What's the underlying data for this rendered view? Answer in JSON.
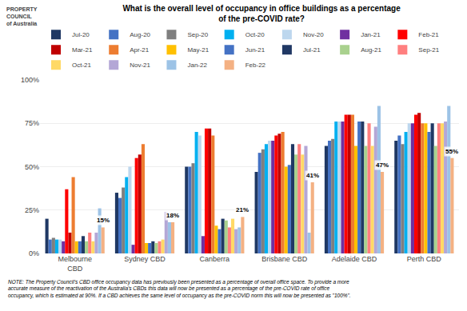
{
  "chart_data": {
    "type": "bar",
    "title": "What is the overall level of occupancy in office buildings as a percentage\nof the pre-COVID rate?",
    "categories": [
      "Melbourne\nCBD",
      "Sydney CBD",
      "Canberra",
      "Brisbane CBD",
      "Adelaide CBD",
      "Perth CBD"
    ],
    "series": [
      {
        "name": "Jul-20",
        "color": "#1F3864",
        "values": [
          20,
          35,
          50,
          47,
          62,
          65
        ]
      },
      {
        "name": "Aug-20",
        "color": "#4472C4",
        "values": [
          8,
          32,
          50,
          58,
          65,
          68
        ]
      },
      {
        "name": "Sep-20",
        "color": "#7F7F7F",
        "values": [
          9,
          38,
          52,
          60,
          66,
          63
        ]
      },
      {
        "name": "Oct-20",
        "color": "#00B0F0",
        "values": [
          8,
          44,
          70,
          63,
          76,
          70
        ]
      },
      {
        "name": "Nov-20",
        "color": "#BDD7EE",
        "values": [
          8,
          50,
          68,
          65,
          76,
          75
        ]
      },
      {
        "name": "Jan-21",
        "color": "#7030A0",
        "values": [
          7,
          5,
          10,
          65,
          76,
          75
        ]
      },
      {
        "name": "Feb-21",
        "color": "#FF0000",
        "values": [
          37,
          55,
          72,
          68,
          80,
          80
        ]
      },
      {
        "name": "Mar-21",
        "color": "#C00000",
        "values": [
          12,
          57,
          72,
          69,
          80,
          81
        ]
      },
      {
        "name": "Apr-21",
        "color": "#ED7D31",
        "values": [
          44,
          63,
          68,
          70,
          80,
          75
        ]
      },
      {
        "name": "May-21",
        "color": "#FFC000",
        "values": [
          7,
          6,
          16,
          50,
          62,
          75
        ]
      },
      {
        "name": "Jun-21",
        "color": "#4472C4",
        "values": [
          7,
          6,
          14,
          51,
          76,
          70
        ]
      },
      {
        "name": "Jul-21",
        "color": "#203864",
        "values": [
          10,
          7,
          20,
          63,
          76,
          75
        ]
      },
      {
        "name": "Aug-21",
        "color": "#A9D18E",
        "values": [
          7,
          6,
          19,
          57,
          62,
          62
        ]
      },
      {
        "name": "Sep-21",
        "color": "#FF7F7F",
        "values": [
          12,
          7,
          15,
          63,
          75,
          75
        ]
      },
      {
        "name": "Oct-21",
        "color": "#FFD966",
        "values": [
          7,
          8,
          20,
          57,
          62,
          75
        ]
      },
      {
        "name": "Nov-21",
        "color": "#B4A7D6",
        "values": [
          12,
          24,
          14,
          62,
          73,
          76
        ]
      },
      {
        "name": "Jan-22",
        "color": "#9DC3E6",
        "values": [
          26,
          18,
          15,
          12,
          85,
          85
        ]
      },
      {
        "name": "Feb-22",
        "color": "#F4B183",
        "values": [
          15,
          18,
          21,
          41,
          47,
          55
        ]
      }
    ],
    "annotations": [
      {
        "text": "15%",
        "category": "Melbourne\nCBD",
        "series": "Feb-22"
      },
      {
        "text": "18%",
        "category": "Sydney CBD",
        "series": "Feb-22"
      },
      {
        "text": "21%",
        "category": "Canberra",
        "series": "Feb-22"
      },
      {
        "text": "41%",
        "category": "Brisbane CBD",
        "series": "Feb-22"
      },
      {
        "text": "47%",
        "category": "Adelaide CBD",
        "series": "Feb-22"
      },
      {
        "text": "55%",
        "category": "Perth CBD",
        "series": "Feb-22"
      }
    ],
    "ylim": [
      0,
      100
    ],
    "yticks": [
      {
        "value": 0,
        "label": "0%"
      },
      {
        "value": 25,
        "label": "25%"
      },
      {
        "value": 50,
        "label": "50%"
      },
      {
        "value": 75,
        "label": "75%"
      },
      {
        "value": 100,
        "label": "100%"
      }
    ],
    "grid": true,
    "legend": "top",
    "note": "NOTE: The Property Council's CBD office occupancy data has previously been presented as a percentage of overall office space. To provide a more accurate measure of the\nreactivation of the Australia's CBDs this data will now be presented as a percentage of the pre-COVID rate of office occupancy, which is estimated at 90%. If a CBD achieves the same\nlevel of occupancy as the pre-COVID norm this will now be presented as \"100%\".",
    "logo": "PROPERTY\nCOUNCIL\nof Australia"
  }
}
